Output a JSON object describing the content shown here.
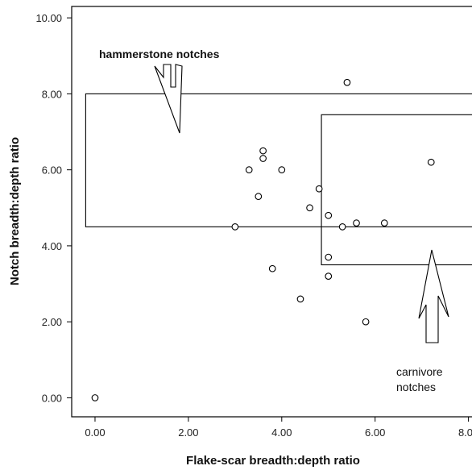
{
  "chart_data": {
    "type": "scatter",
    "xlabel": "Flake-scar breadth:depth ratio",
    "ylabel": "Notch breadth:depth ratio",
    "xlim": [
      -0.5,
      8.3
    ],
    "ylim": [
      -0.5,
      10.3
    ],
    "x_ticks": [
      "0.00",
      "2.00",
      "4.00",
      "6.00",
      "8.00"
    ],
    "x_tick_values": [
      0,
      2,
      4,
      6,
      8
    ],
    "y_ticks": [
      "0.00",
      "2.00",
      "4.00",
      "6.00",
      "8.00",
      "10.00"
    ],
    "y_tick_values": [
      0,
      2,
      4,
      6,
      8,
      10
    ],
    "grid": false,
    "points": [
      {
        "x": 0.0,
        "y": 0.0
      },
      {
        "x": 3.0,
        "y": 4.5
      },
      {
        "x": 3.3,
        "y": 6.0
      },
      {
        "x": 3.5,
        "y": 5.3
      },
      {
        "x": 3.6,
        "y": 6.5
      },
      {
        "x": 3.6,
        "y": 6.3
      },
      {
        "x": 3.8,
        "y": 3.4
      },
      {
        "x": 4.0,
        "y": 6.0
      },
      {
        "x": 4.4,
        "y": 2.6
      },
      {
        "x": 4.6,
        "y": 5.0
      },
      {
        "x": 4.8,
        "y": 5.5
      },
      {
        "x": 5.0,
        "y": 4.8
      },
      {
        "x": 5.0,
        "y": 3.7
      },
      {
        "x": 5.0,
        "y": 3.2
      },
      {
        "x": 5.3,
        "y": 4.5
      },
      {
        "x": 5.4,
        "y": 8.3
      },
      {
        "x": 5.6,
        "y": 4.6
      },
      {
        "x": 5.8,
        "y": 2.0
      },
      {
        "x": 6.2,
        "y": 4.6
      },
      {
        "x": 7.2,
        "y": 6.2
      }
    ],
    "regions": [
      {
        "name": "hammerstone",
        "x_min": -0.2,
        "x_max": 8.3,
        "y_min": 4.5,
        "y_max": 8.0
      },
      {
        "name": "carnivore",
        "x_min": 4.85,
        "x_max": 8.3,
        "y_min": 3.5,
        "y_max": 7.45
      }
    ],
    "annotations": [
      {
        "id": "hammerstone",
        "text": "hammerstone notches"
      },
      {
        "id": "carnivore",
        "lines": [
          "carnivore",
          "notches"
        ]
      }
    ]
  }
}
